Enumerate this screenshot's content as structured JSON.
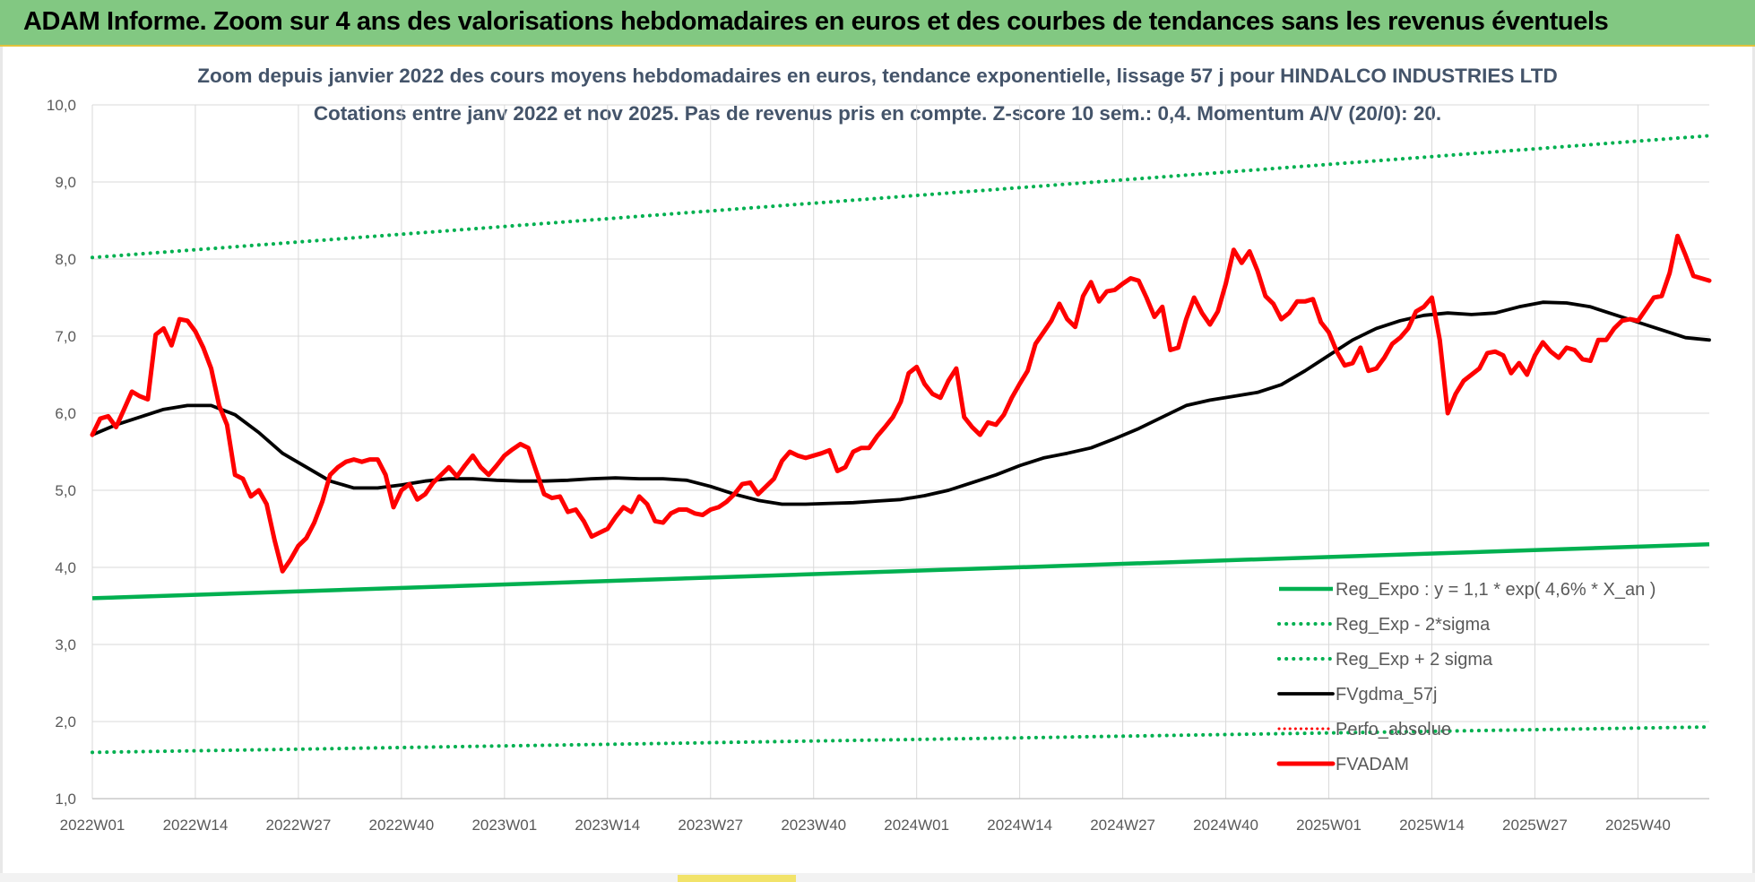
{
  "header": {
    "title": "ADAM Informe. Zoom sur 4 ans des valorisations hebdomadaires en euros et des courbes de tendances sans les revenus éventuels"
  },
  "colors": {
    "banner": "#82c882",
    "regression": "#00b050",
    "price": "#ff0000",
    "average": "#000000",
    "perf": "#ff0000",
    "grid": "#d9d9d9",
    "title": "#44546a"
  },
  "chart_data": {
    "type": "line",
    "title": "Zoom depuis janvier 2022 des cours moyens hebdomadaires en euros, tendance exponentielle, lissage 57 j pour HINDALCO INDUSTRIES LTD",
    "subtitle": "Cotations entre janv 2022 et nov 2025. Pas de revenus pris en compte. Z-score 10 sem.: 0,4. Momentum A/V (20/0): 20.",
    "xlabel": "",
    "ylabel": "",
    "ylim": [
      1.0,
      10.0
    ],
    "y_ticks": [
      "1,0",
      "2,0",
      "3,0",
      "4,0",
      "5,0",
      "6,0",
      "7,0",
      "8,0",
      "9,0",
      "10,0"
    ],
    "x_ticks": [
      "2022W01",
      "2022W14",
      "2022W27",
      "2022W40",
      "2023W01",
      "2023W14",
      "2023W27",
      "2023W40",
      "2024W01",
      "2024W14",
      "2024W27",
      "2024W40",
      "2025W01",
      "2025W14",
      "2025W27",
      "2025W40"
    ],
    "weeks_total": 204,
    "grid": true,
    "legend_position": "bottom-right",
    "series": [
      {
        "name": "Reg_Expo : y = 1,1 * exp( 4,6% *  X_an )",
        "style": "solid",
        "points": [
          [
            0,
            3.6
          ],
          [
            204,
            4.3
          ]
        ]
      },
      {
        "name": "Reg_Exp - 2*sigma",
        "style": "dotted",
        "points": [
          [
            0,
            1.6
          ],
          [
            204,
            1.93
          ]
        ]
      },
      {
        "name": "Reg_Exp + 2 sigma",
        "style": "dotted",
        "points": [
          [
            0,
            8.02
          ],
          [
            204,
            9.6
          ]
        ]
      },
      {
        "name": "FVgdma_57j",
        "style": "solid",
        "points": [
          [
            0,
            5.72
          ],
          [
            3,
            5.85
          ],
          [
            6,
            5.95
          ],
          [
            9,
            6.05
          ],
          [
            12,
            6.1
          ],
          [
            15,
            6.1
          ],
          [
            18,
            5.98
          ],
          [
            21,
            5.75
          ],
          [
            24,
            5.48
          ],
          [
            27,
            5.3
          ],
          [
            30,
            5.12
          ],
          [
            33,
            5.03
          ],
          [
            36,
            5.03
          ],
          [
            39,
            5.07
          ],
          [
            42,
            5.12
          ],
          [
            45,
            5.15
          ],
          [
            48,
            5.15
          ],
          [
            51,
            5.13
          ],
          [
            54,
            5.12
          ],
          [
            57,
            5.12
          ],
          [
            60,
            5.13
          ],
          [
            63,
            5.15
          ],
          [
            66,
            5.16
          ],
          [
            69,
            5.15
          ],
          [
            72,
            5.15
          ],
          [
            75,
            5.13
          ],
          [
            78,
            5.05
          ],
          [
            81,
            4.95
          ],
          [
            84,
            4.87
          ],
          [
            87,
            4.82
          ],
          [
            90,
            4.82
          ],
          [
            93,
            4.83
          ],
          [
            96,
            4.84
          ],
          [
            99,
            4.86
          ],
          [
            102,
            4.88
          ],
          [
            105,
            4.93
          ],
          [
            108,
            5.0
          ],
          [
            111,
            5.1
          ],
          [
            114,
            5.2
          ],
          [
            117,
            5.32
          ],
          [
            120,
            5.42
          ],
          [
            123,
            5.48
          ],
          [
            126,
            5.55
          ],
          [
            129,
            5.67
          ],
          [
            132,
            5.8
          ],
          [
            135,
            5.95
          ],
          [
            138,
            6.1
          ],
          [
            141,
            6.17
          ],
          [
            144,
            6.22
          ],
          [
            147,
            6.27
          ],
          [
            150,
            6.37
          ],
          [
            153,
            6.55
          ],
          [
            156,
            6.75
          ],
          [
            159,
            6.95
          ],
          [
            162,
            7.1
          ],
          [
            165,
            7.2
          ],
          [
            168,
            7.27
          ],
          [
            171,
            7.3
          ],
          [
            174,
            7.28
          ],
          [
            177,
            7.3
          ],
          [
            180,
            7.38
          ],
          [
            183,
            7.44
          ],
          [
            186,
            7.43
          ],
          [
            189,
            7.38
          ],
          [
            192,
            7.28
          ],
          [
            195,
            7.18
          ],
          [
            198,
            7.08
          ],
          [
            201,
            6.98
          ],
          [
            204,
            6.95
          ]
        ]
      },
      {
        "name": "Perfo_absolue",
        "style": "dotted",
        "points": []
      },
      {
        "name": "FVADAM",
        "style": "solid",
        "points": [
          [
            0,
            5.72
          ],
          [
            1,
            5.93
          ],
          [
            2,
            5.96
          ],
          [
            3,
            5.82
          ],
          [
            4,
            6.05
          ],
          [
            5,
            6.28
          ],
          [
            6,
            6.22
          ],
          [
            7,
            6.18
          ],
          [
            8,
            7.02
          ],
          [
            9,
            7.1
          ],
          [
            10,
            6.88
          ],
          [
            11,
            7.22
          ],
          [
            12,
            7.2
          ],
          [
            13,
            7.06
          ],
          [
            14,
            6.85
          ],
          [
            15,
            6.58
          ],
          [
            16,
            6.1
          ],
          [
            17,
            5.85
          ],
          [
            18,
            5.2
          ],
          [
            19,
            5.15
          ],
          [
            20,
            4.92
          ],
          [
            21,
            5.0
          ],
          [
            22,
            4.82
          ],
          [
            23,
            4.35
          ],
          [
            24,
            3.95
          ],
          [
            25,
            4.1
          ],
          [
            26,
            4.28
          ],
          [
            27,
            4.38
          ],
          [
            28,
            4.58
          ],
          [
            29,
            4.85
          ],
          [
            30,
            5.2
          ],
          [
            31,
            5.3
          ],
          [
            32,
            5.37
          ],
          [
            33,
            5.4
          ],
          [
            34,
            5.37
          ],
          [
            35,
            5.4
          ],
          [
            36,
            5.4
          ],
          [
            37,
            5.2
          ],
          [
            38,
            4.78
          ],
          [
            39,
            5.0
          ],
          [
            40,
            5.08
          ],
          [
            41,
            4.88
          ],
          [
            42,
            4.95
          ],
          [
            43,
            5.1
          ],
          [
            44,
            5.2
          ],
          [
            45,
            5.3
          ],
          [
            46,
            5.18
          ],
          [
            47,
            5.32
          ],
          [
            48,
            5.45
          ],
          [
            49,
            5.3
          ],
          [
            50,
            5.2
          ],
          [
            51,
            5.32
          ],
          [
            52,
            5.45
          ],
          [
            53,
            5.53
          ],
          [
            54,
            5.6
          ],
          [
            55,
            5.55
          ],
          [
            56,
            5.25
          ],
          [
            57,
            4.95
          ],
          [
            58,
            4.9
          ],
          [
            59,
            4.92
          ],
          [
            60,
            4.72
          ],
          [
            61,
            4.75
          ],
          [
            62,
            4.6
          ],
          [
            63,
            4.4
          ],
          [
            64,
            4.45
          ],
          [
            65,
            4.5
          ],
          [
            66,
            4.65
          ],
          [
            67,
            4.78
          ],
          [
            68,
            4.72
          ],
          [
            69,
            4.92
          ],
          [
            70,
            4.82
          ],
          [
            71,
            4.6
          ],
          [
            72,
            4.58
          ],
          [
            73,
            4.7
          ],
          [
            74,
            4.75
          ],
          [
            75,
            4.75
          ],
          [
            76,
            4.7
          ],
          [
            77,
            4.68
          ],
          [
            78,
            4.75
          ],
          [
            79,
            4.78
          ],
          [
            80,
            4.85
          ],
          [
            81,
            4.95
          ],
          [
            82,
            5.08
          ],
          [
            83,
            5.1
          ],
          [
            84,
            4.95
          ],
          [
            85,
            5.05
          ],
          [
            86,
            5.15
          ],
          [
            87,
            5.38
          ],
          [
            88,
            5.5
          ],
          [
            89,
            5.45
          ],
          [
            90,
            5.42
          ],
          [
            91,
            5.45
          ],
          [
            92,
            5.48
          ],
          [
            93,
            5.52
          ],
          [
            94,
            5.25
          ],
          [
            95,
            5.3
          ],
          [
            96,
            5.5
          ],
          [
            97,
            5.55
          ],
          [
            98,
            5.55
          ],
          [
            99,
            5.7
          ],
          [
            100,
            5.82
          ],
          [
            101,
            5.95
          ],
          [
            102,
            6.15
          ],
          [
            103,
            6.52
          ],
          [
            104,
            6.6
          ],
          [
            105,
            6.38
          ],
          [
            106,
            6.25
          ],
          [
            107,
            6.2
          ],
          [
            108,
            6.42
          ],
          [
            109,
            6.58
          ],
          [
            110,
            5.95
          ],
          [
            111,
            5.82
          ],
          [
            112,
            5.72
          ],
          [
            113,
            5.88
          ],
          [
            114,
            5.85
          ],
          [
            115,
            5.98
          ],
          [
            116,
            6.2
          ],
          [
            117,
            6.38
          ],
          [
            118,
            6.55
          ],
          [
            119,
            6.9
          ],
          [
            120,
            7.05
          ],
          [
            121,
            7.2
          ],
          [
            122,
            7.42
          ],
          [
            123,
            7.22
          ],
          [
            124,
            7.12
          ],
          [
            125,
            7.52
          ],
          [
            126,
            7.7
          ],
          [
            127,
            7.45
          ],
          [
            128,
            7.58
          ],
          [
            129,
            7.6
          ],
          [
            130,
            7.68
          ],
          [
            131,
            7.75
          ],
          [
            132,
            7.72
          ],
          [
            133,
            7.5
          ],
          [
            134,
            7.25
          ],
          [
            135,
            7.38
          ],
          [
            136,
            6.82
          ],
          [
            137,
            6.85
          ],
          [
            138,
            7.22
          ],
          [
            139,
            7.5
          ],
          [
            140,
            7.3
          ],
          [
            141,
            7.15
          ],
          [
            142,
            7.32
          ],
          [
            143,
            7.68
          ],
          [
            144,
            8.12
          ],
          [
            145,
            7.95
          ],
          [
            146,
            8.1
          ],
          [
            147,
            7.85
          ],
          [
            148,
            7.52
          ],
          [
            149,
            7.42
          ],
          [
            150,
            7.22
          ],
          [
            151,
            7.3
          ],
          [
            152,
            7.45
          ],
          [
            153,
            7.45
          ],
          [
            154,
            7.48
          ],
          [
            155,
            7.18
          ],
          [
            156,
            7.05
          ],
          [
            157,
            6.8
          ],
          [
            158,
            6.62
          ],
          [
            159,
            6.65
          ],
          [
            160,
            6.85
          ],
          [
            161,
            6.55
          ],
          [
            162,
            6.58
          ],
          [
            163,
            6.72
          ],
          [
            164,
            6.9
          ],
          [
            165,
            6.98
          ],
          [
            166,
            7.1
          ],
          [
            167,
            7.32
          ],
          [
            168,
            7.38
          ],
          [
            169,
            7.5
          ],
          [
            170,
            6.95
          ],
          [
            171,
            6.0
          ],
          [
            172,
            6.25
          ],
          [
            173,
            6.42
          ],
          [
            174,
            6.5
          ],
          [
            175,
            6.58
          ],
          [
            176,
            6.78
          ],
          [
            177,
            6.8
          ],
          [
            178,
            6.75
          ],
          [
            179,
            6.52
          ],
          [
            180,
            6.65
          ],
          [
            181,
            6.5
          ],
          [
            182,
            6.75
          ],
          [
            183,
            6.92
          ],
          [
            184,
            6.8
          ],
          [
            185,
            6.72
          ],
          [
            186,
            6.85
          ],
          [
            187,
            6.82
          ],
          [
            188,
            6.7
          ],
          [
            189,
            6.68
          ],
          [
            190,
            6.95
          ],
          [
            191,
            6.95
          ],
          [
            192,
            7.1
          ],
          [
            193,
            7.2
          ],
          [
            194,
            7.22
          ],
          [
            195,
            7.2
          ],
          [
            196,
            7.35
          ],
          [
            197,
            7.5
          ],
          [
            198,
            7.52
          ],
          [
            199,
            7.82
          ],
          [
            200,
            8.3
          ],
          [
            201,
            8.05
          ],
          [
            202,
            7.78
          ],
          [
            203,
            7.75
          ],
          [
            204,
            7.72
          ]
        ]
      }
    ]
  }
}
